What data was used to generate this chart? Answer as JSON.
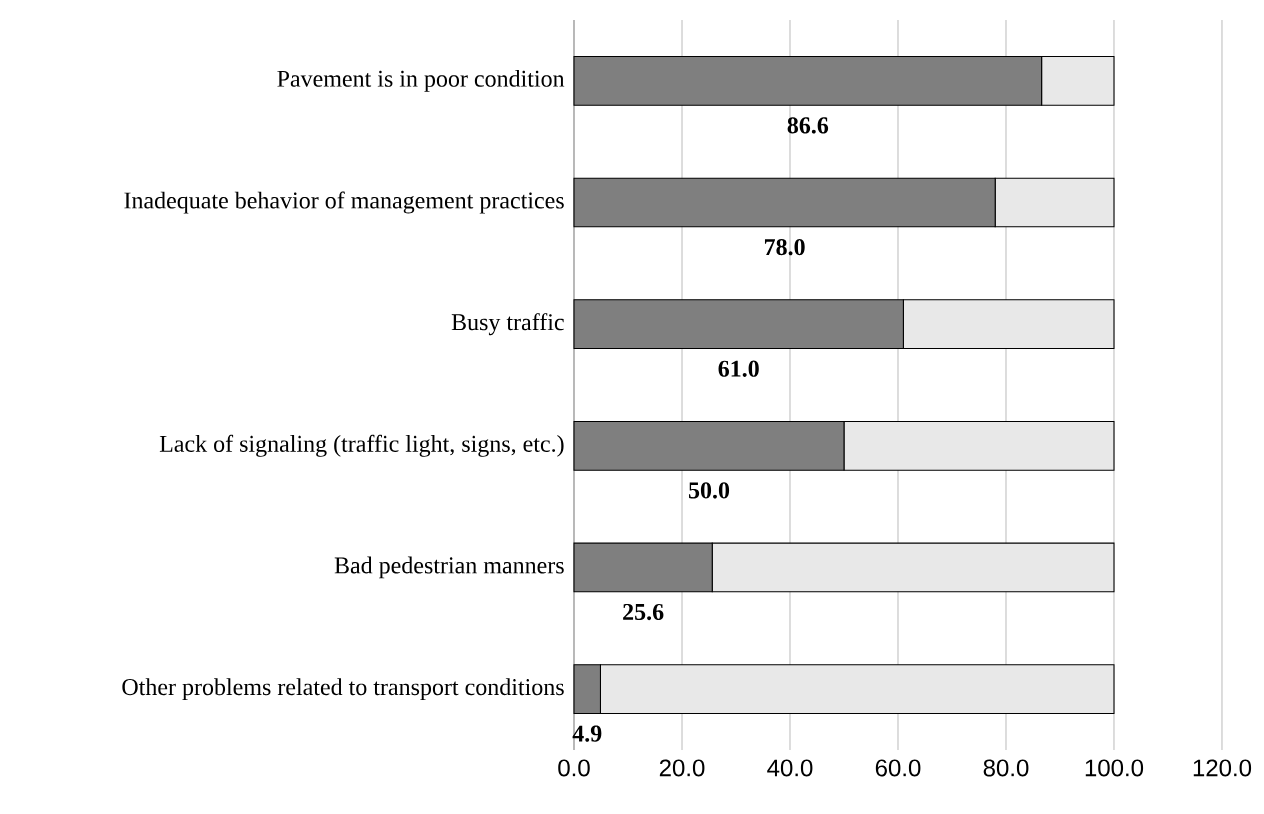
{
  "chart_data": {
    "type": "bar",
    "orientation": "horizontal",
    "stacked": true,
    "grid": "x",
    "categories": [
      "Pavement is in poor condition",
      "Inadequate behavior of management practices",
      "Busy traffic",
      "Lack of signaling (traffic light, signs, etc.)",
      "Bad pedestrian manners",
      "Other problems related to transport conditions"
    ],
    "series": [
      {
        "color": "#7f7f7f",
        "values": [
          86.6,
          78.0,
          61.0,
          50.0,
          25.6,
          4.9
        ],
        "value_labels": [
          "86.6",
          "78.0",
          "61.0",
          "50.0",
          "25.6",
          "4.9"
        ]
      },
      {
        "color": "#e8e8e8",
        "values": [
          13.4,
          22.0,
          39.0,
          50.0,
          74.4,
          95.1
        ]
      }
    ],
    "xlim": [
      0,
      120
    ],
    "xticks": [
      {
        "value": 0,
        "label": "0.0"
      },
      {
        "value": 20,
        "label": "20.0"
      },
      {
        "value": 40,
        "label": "40.0"
      },
      {
        "value": 60,
        "label": "60.0"
      },
      {
        "value": 80,
        "label": "80.0"
      },
      {
        "value": 100,
        "label": "100.0"
      },
      {
        "value": 120,
        "label": "120.0"
      }
    ]
  }
}
